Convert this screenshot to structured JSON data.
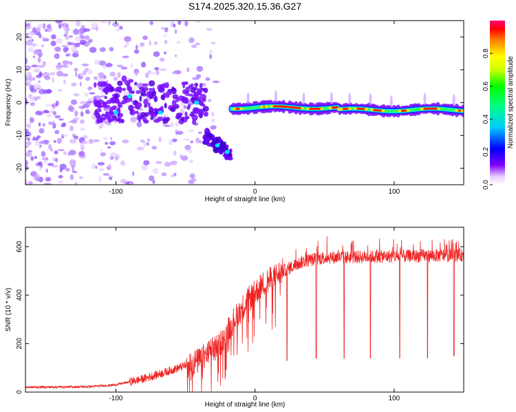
{
  "title": "S174.2025.320.15.36.G27",
  "chart_data": [
    {
      "type": "heatmap",
      "name": "spectrogram",
      "xlabel": "Height of straight line (km)",
      "ylabel": "Frequency (Hz)",
      "xlim": [
        -165,
        150
      ],
      "ylim": [
        -25,
        25
      ],
      "xticks": [
        -100,
        0,
        100
      ],
      "yticks": [
        -20,
        -10,
        0,
        10,
        20
      ],
      "colorbar": {
        "label": "Normalized spectral amplitude",
        "range": [
          0,
          1
        ],
        "ticks": [
          "0.0",
          "0.2",
          "0.4",
          "0.6",
          "0.8"
        ],
        "tick_values": [
          0.0,
          0.2,
          0.4,
          0.6,
          0.8
        ],
        "colors": [
          "#ffffff",
          "#d9b3ff",
          "#8000ff",
          "#0000ff",
          "#00ffff",
          "#00ff00",
          "#ffff00",
          "#ff8000",
          "#ff0000",
          "#ff0080"
        ]
      },
      "ridge": [
        {
          "x": -100,
          "y": -3
        },
        {
          "x": -90,
          "y": 3
        },
        {
          "x": -80,
          "y": -1
        },
        {
          "x": -60,
          "y": 0
        },
        {
          "x": -40,
          "y": 0
        },
        {
          "x": -35,
          "y": -12
        },
        {
          "x": -25,
          "y": -14
        },
        {
          "x": -17,
          "y": -16
        },
        {
          "x": -17,
          "y": -1.5
        },
        {
          "x": 0,
          "y": -1.5
        },
        {
          "x": 50,
          "y": -2
        },
        {
          "x": 100,
          "y": -2
        },
        {
          "x": 150,
          "y": -2.5
        }
      ]
    },
    {
      "type": "line",
      "name": "snr",
      "xlabel": "Height of straight line (km)",
      "ylabel": "SNR (10 * v/v)",
      "xlim": [
        -165,
        150
      ],
      "ylim": [
        0,
        680
      ],
      "xticks": [
        -100,
        0,
        100
      ],
      "yticks": [
        0,
        200,
        400,
        600
      ],
      "color": "#ee2222",
      "trend": [
        {
          "x": -165,
          "y": 20
        },
        {
          "x": -120,
          "y": 22
        },
        {
          "x": -100,
          "y": 30
        },
        {
          "x": -80,
          "y": 55
        },
        {
          "x": -60,
          "y": 90
        },
        {
          "x": -40,
          "y": 130
        },
        {
          "x": -25,
          "y": 200
        },
        {
          "x": -15,
          "y": 300
        },
        {
          "x": -5,
          "y": 380
        },
        {
          "x": 5,
          "y": 440
        },
        {
          "x": 20,
          "y": 500
        },
        {
          "x": 35,
          "y": 540
        },
        {
          "x": 50,
          "y": 555
        },
        {
          "x": 100,
          "y": 560
        },
        {
          "x": 150,
          "y": 565
        }
      ],
      "dips": [
        {
          "x": 23,
          "y": 130
        },
        {
          "x": 44,
          "y": 140
        },
        {
          "x": 64,
          "y": 140
        },
        {
          "x": 83,
          "y": 140
        },
        {
          "x": 104,
          "y": 140
        },
        {
          "x": 124,
          "y": 140
        },
        {
          "x": 143,
          "y": 150
        }
      ]
    }
  ]
}
